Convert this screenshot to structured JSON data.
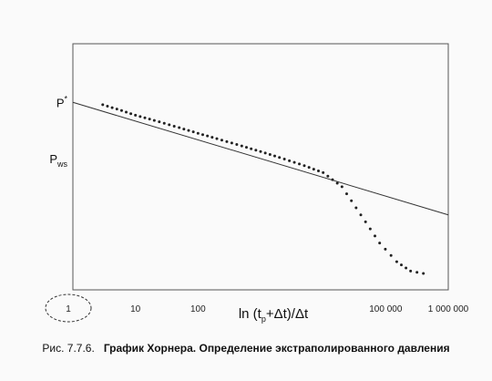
{
  "chart_data": {
    "type": "line",
    "xscale": "log",
    "xlim": [
      1,
      1000000
    ],
    "x_ticks": [
      1,
      10,
      100,
      100000,
      1000000
    ],
    "x_tick_labels": [
      "1",
      "10",
      "100",
      "100 000",
      "1 000 000"
    ],
    "xlabel": "ln (tₚ+Δt)/Δt",
    "xlabel_parts": {
      "pre": "ln (t",
      "sub": "p",
      "post": "+Δt)/Δt"
    },
    "y_annotations": [
      {
        "text": "P",
        "sup": "*",
        "y": 100
      },
      {
        "text": "P",
        "sub": "ws",
        "y": 76
      }
    ],
    "ylim": [
      20,
      125
    ],
    "series": [
      {
        "style": "solid-line",
        "x": [
          1,
          1000000
        ],
        "y": [
          100,
          52
        ]
      },
      {
        "style": "dotted",
        "x": [
          3,
          6,
          10,
          20,
          50,
          100,
          200,
          500,
          1000,
          2000,
          5000,
          10000,
          20000,
          40000,
          80000,
          150000,
          250000,
          400000
        ],
        "y": [
          99,
          96.5,
          94.5,
          92.3,
          89.2,
          86.8,
          84.5,
          81.4,
          79,
          76.5,
          73,
          70,
          64,
          52,
          40,
          32,
          28,
          27
        ]
      }
    ]
  },
  "caption": {
    "lead": "Рис. 7.7.6.",
    "title": "График Хорнера. Определение экстраполированного давления"
  }
}
